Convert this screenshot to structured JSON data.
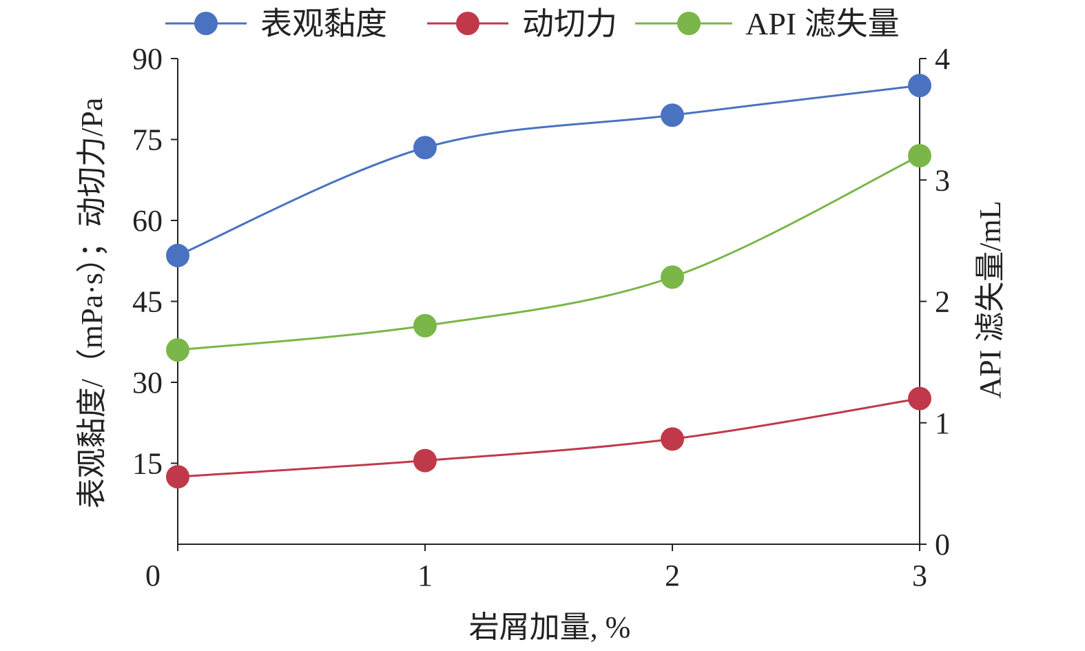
{
  "chart_data": {
    "type": "line",
    "title": "",
    "categories": [
      "0",
      "1",
      "2",
      "3"
    ],
    "xlabel": "岩屑加量, %",
    "ylabel_left": "表观黏度/（mPa·s）；动切力/Pa",
    "ylabel_right": "API 滤失量/mL",
    "y_left_ticks": [
      "15",
      "30",
      "45",
      "60",
      "75",
      "90"
    ],
    "y_left_lim": [
      0,
      90
    ],
    "y_right_ticks": [
      "0",
      "1",
      "2",
      "3",
      "4"
    ],
    "y_right_lim": [
      0,
      4
    ],
    "legend_position": "top",
    "grid": false,
    "series": [
      {
        "name": "表观黏度",
        "axis": "left",
        "color": "#4a72c0",
        "x": [
          0,
          1,
          2,
          3
        ],
        "values": [
          53.5,
          73.5,
          79.5,
          85.0
        ]
      },
      {
        "name": "动切力",
        "axis": "left",
        "color": "#c0394a",
        "x": [
          0,
          1,
          2,
          3
        ],
        "values": [
          12.5,
          15.5,
          19.5,
          27.0
        ]
      },
      {
        "name": "API 滤失量",
        "axis": "right",
        "color": "#7ab648",
        "x": [
          0,
          1,
          2,
          3
        ],
        "values": [
          1.6,
          1.8,
          2.2,
          3.2
        ]
      }
    ]
  }
}
